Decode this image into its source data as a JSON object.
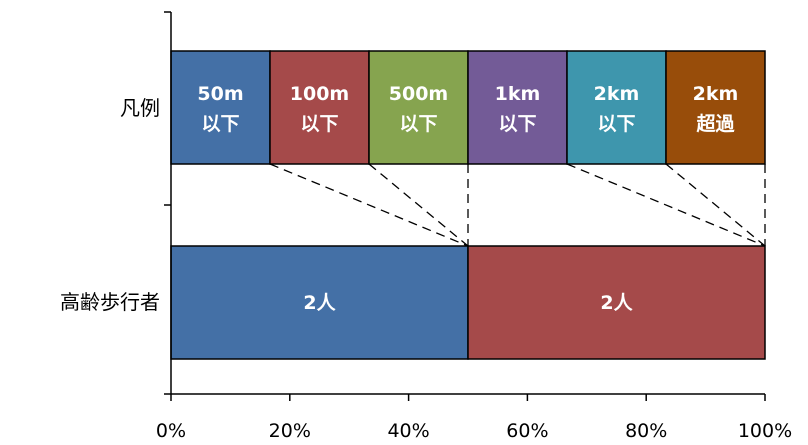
{
  "chart_data": {
    "type": "bar",
    "orientation": "horizontal",
    "stacked": "percent",
    "x_ticks": [
      "0%",
      "20%",
      "40%",
      "60%",
      "80%",
      "100%"
    ],
    "xlim": [
      0,
      100
    ],
    "rows": [
      {
        "category": "凡例",
        "segments": [
          {
            "lines": [
              "50m",
              "以下"
            ],
            "share": 16.667,
            "color": "#4470A6"
          },
          {
            "lines": [
              "100m",
              "以下"
            ],
            "share": 16.667,
            "color": "#A54A4A"
          },
          {
            "lines": [
              "500m",
              "以下"
            ],
            "share": 16.667,
            "color": "#86A44F"
          },
          {
            "lines": [
              "1km",
              "以下"
            ],
            "share": 16.667,
            "color": "#735B97"
          },
          {
            "lines": [
              "2km",
              "以下"
            ],
            "share": 16.667,
            "color": "#3E96AD"
          },
          {
            "lines": [
              "2km",
              "超過"
            ],
            "share": 16.665,
            "color": "#984D0A"
          }
        ]
      },
      {
        "category": "高齢歩行者",
        "segments": [
          {
            "lines": [
              "2人"
            ],
            "value": 2,
            "share": 50,
            "color": "#4470A6"
          },
          {
            "lines": [
              "2人"
            ],
            "value": 2,
            "share": 50,
            "color": "#A54A4A"
          }
        ]
      }
    ],
    "connector_lines": "dashed",
    "grid": false,
    "legend": "none"
  }
}
